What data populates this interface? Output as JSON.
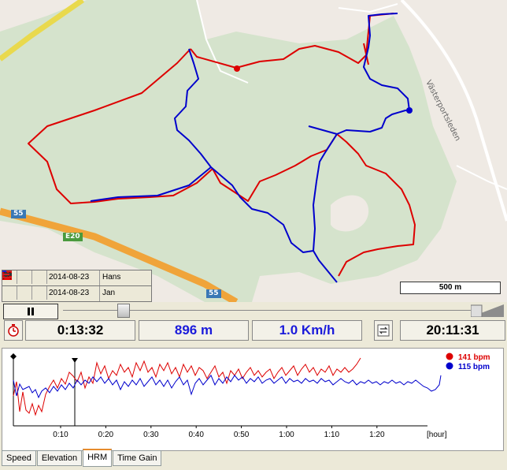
{
  "map": {
    "road_labels": [
      "55",
      "E20",
      "55"
    ],
    "street_label": "Västerportsleden",
    "scale_label": "500 m",
    "tracks": [
      {
        "date": "2014-08-23",
        "name": "Hans",
        "color": "#dd0000"
      },
      {
        "date": "2014-08-23",
        "name": "Jan",
        "color": "#0000cc"
      }
    ]
  },
  "info": {
    "elapsed": "0:13:32",
    "distance": "896 m",
    "speed": "1.0 Km/h",
    "clock": "20:11:31"
  },
  "chart_data": {
    "type": "line",
    "x_ticks": [
      "0:10",
      "0:20",
      "0:30",
      "0:40",
      "0:50",
      "1:00",
      "1:10",
      "1:20"
    ],
    "x_unit": "[hour]",
    "series": [
      {
        "name": "141 bpm",
        "color": "#dd0000"
      },
      {
        "name": "115 bpm",
        "color": "#0000cc"
      }
    ]
  },
  "tabs": [
    "Speed",
    "Elevation",
    "HRM",
    "Time Gain"
  ],
  "active_tab": "HRM"
}
